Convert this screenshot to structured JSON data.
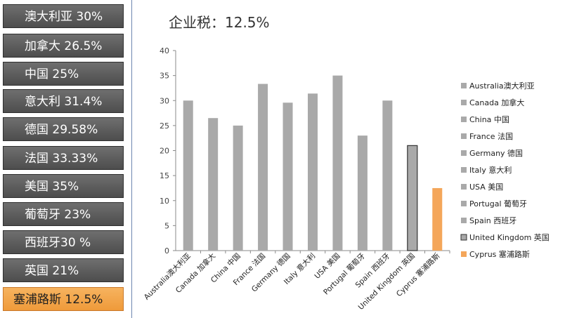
{
  "sidebar": {
    "items": [
      {
        "label": "澳大利亚 30%"
      },
      {
        "label": "加拿大 26.5%"
      },
      {
        "label": "中国 25%"
      },
      {
        "label": "意大利 31.4%"
      },
      {
        "label": "德国  29.58%"
      },
      {
        "label": "法国 33.33%"
      },
      {
        "label": "美国 35%"
      },
      {
        "label": "葡萄牙 23%"
      },
      {
        "label": "西班牙30 %"
      },
      {
        "label": "英国 21%"
      },
      {
        "label": "塞浦路斯 12.5%"
      }
    ]
  },
  "chart_data": {
    "type": "bar",
    "title": "企业税：12.5%",
    "categories": [
      "Australia澳大利亚",
      "Canada 加拿大",
      "China 中国",
      "France 法国",
      "Germany 德国",
      "Italy 意大利",
      "USA 美国",
      "Portugal 葡萄牙",
      "Spain 西班牙",
      "United Kingdom 英国",
      "Cyprus 塞浦路斯"
    ],
    "values": [
      30,
      26.5,
      25,
      33.33,
      29.58,
      31.4,
      35,
      23,
      30,
      21,
      12.5
    ],
    "ylim": [
      0,
      40
    ],
    "yticks": [
      0,
      5,
      10,
      15,
      20,
      25,
      30,
      35,
      40
    ],
    "grid": false,
    "legend_position": "right",
    "legend": [
      "Australia澳大利亚",
      "Canada 加拿大",
      "China 中国",
      "France 法国",
      "Germany 德国",
      "Italy 意大利",
      "USA 美国",
      "Portugal 葡萄牙",
      "Spain 西班牙",
      "United Kingdom 英国",
      "Cyprus 塞浦路斯"
    ],
    "colors": {
      "default": "#a9a9a9",
      "highlight_outline": "#333333",
      "highlight": "#f4a65a"
    }
  }
}
